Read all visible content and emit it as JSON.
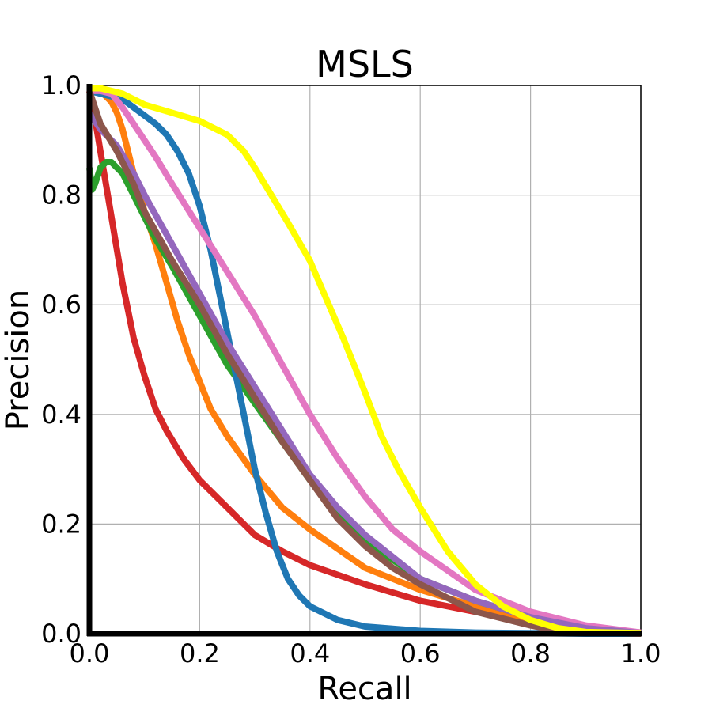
{
  "chart_data": {
    "type": "line",
    "title": "MSLS",
    "xlabel": "Recall",
    "ylabel": "Precision",
    "xlim": [
      0,
      1
    ],
    "ylim": [
      0,
      1
    ],
    "grid": true,
    "xticks": [
      {
        "value": 0.0,
        "label": "0.0"
      },
      {
        "value": 0.2,
        "label": "0.2"
      },
      {
        "value": 0.4,
        "label": "0.4"
      },
      {
        "value": 0.6,
        "label": "0.6"
      },
      {
        "value": 0.8,
        "label": "0.8"
      },
      {
        "value": 1.0,
        "label": "1.0"
      }
    ],
    "yticks": [
      {
        "value": 0.0,
        "label": "0.0"
      },
      {
        "value": 0.2,
        "label": "0.2"
      },
      {
        "value": 0.4,
        "label": "0.4"
      },
      {
        "value": 0.6,
        "label": "0.6"
      },
      {
        "value": 0.8,
        "label": "0.8"
      },
      {
        "value": 1.0,
        "label": "1.0"
      }
    ],
    "series": [
      {
        "name": "red",
        "color": "#d62728",
        "x": [
          0,
          0.01,
          0.02,
          0.03,
          0.04,
          0.05,
          0.06,
          0.07,
          0.08,
          0.1,
          0.12,
          0.14,
          0.17,
          0.2,
          0.25,
          0.3,
          0.35,
          0.4,
          0.5,
          0.6,
          0.7,
          0.8,
          0.9,
          1.0
        ],
        "y": [
          0.99,
          0.94,
          0.88,
          0.82,
          0.76,
          0.7,
          0.64,
          0.59,
          0.54,
          0.47,
          0.41,
          0.37,
          0.32,
          0.28,
          0.23,
          0.18,
          0.15,
          0.125,
          0.09,
          0.06,
          0.04,
          0.025,
          0.012,
          0.002
        ]
      },
      {
        "name": "orange",
        "color": "#ff7f0e",
        "x": [
          0,
          0.02,
          0.04,
          0.05,
          0.06,
          0.07,
          0.08,
          0.1,
          0.12,
          0.14,
          0.16,
          0.18,
          0.2,
          0.22,
          0.25,
          0.3,
          0.35,
          0.4,
          0.45,
          0.5,
          0.6,
          0.7,
          0.8,
          0.9,
          1.0
        ],
        "y": [
          0.99,
          0.99,
          0.97,
          0.95,
          0.92,
          0.88,
          0.84,
          0.77,
          0.71,
          0.64,
          0.57,
          0.51,
          0.46,
          0.41,
          0.36,
          0.29,
          0.23,
          0.19,
          0.155,
          0.12,
          0.08,
          0.05,
          0.025,
          0.01,
          0.001
        ]
      },
      {
        "name": "green",
        "color": "#2ca02c",
        "x": [
          0,
          0.005,
          0.01,
          0.02,
          0.03,
          0.04,
          0.05,
          0.06,
          0.08,
          0.1,
          0.12,
          0.15,
          0.2,
          0.25,
          0.3,
          0.35,
          0.4,
          0.45,
          0.5,
          0.6,
          0.7,
          0.8,
          0.9,
          1.0
        ],
        "y": [
          0.85,
          0.81,
          0.82,
          0.85,
          0.86,
          0.86,
          0.85,
          0.84,
          0.8,
          0.76,
          0.72,
          0.67,
          0.58,
          0.49,
          0.42,
          0.35,
          0.28,
          0.22,
          0.17,
          0.1,
          0.06,
          0.03,
          0.012,
          0.001
        ]
      },
      {
        "name": "blue",
        "color": "#1f77b4",
        "x": [
          0,
          0.02,
          0.04,
          0.06,
          0.08,
          0.1,
          0.12,
          0.14,
          0.16,
          0.18,
          0.2,
          0.22,
          0.24,
          0.26,
          0.28,
          0.3,
          0.32,
          0.34,
          0.36,
          0.38,
          0.4,
          0.45,
          0.5,
          0.6,
          0.7,
          0.8,
          0.9,
          1.0
        ],
        "y": [
          0.99,
          0.985,
          0.98,
          0.975,
          0.96,
          0.945,
          0.93,
          0.91,
          0.88,
          0.84,
          0.78,
          0.7,
          0.6,
          0.5,
          0.4,
          0.3,
          0.22,
          0.15,
          0.1,
          0.07,
          0.05,
          0.025,
          0.013,
          0.005,
          0.002,
          0.001,
          0.0,
          0.0
        ]
      },
      {
        "name": "pink",
        "color": "#e377c2",
        "x": [
          0,
          0.02,
          0.04,
          0.06,
          0.08,
          0.1,
          0.12,
          0.15,
          0.2,
          0.25,
          0.3,
          0.35,
          0.4,
          0.45,
          0.5,
          0.55,
          0.6,
          0.7,
          0.8,
          0.9,
          1.0
        ],
        "y": [
          0.99,
          0.99,
          0.985,
          0.96,
          0.93,
          0.9,
          0.87,
          0.82,
          0.74,
          0.66,
          0.58,
          0.49,
          0.4,
          0.32,
          0.25,
          0.19,
          0.15,
          0.08,
          0.04,
          0.015,
          0.002
        ]
      },
      {
        "name": "purple",
        "color": "#9467bd",
        "x": [
          0,
          0.02,
          0.05,
          0.08,
          0.1,
          0.15,
          0.2,
          0.25,
          0.3,
          0.35,
          0.4,
          0.45,
          0.5,
          0.55,
          0.6,
          0.7,
          0.8,
          0.9,
          1.0
        ],
        "y": [
          0.95,
          0.92,
          0.89,
          0.84,
          0.8,
          0.71,
          0.62,
          0.53,
          0.45,
          0.37,
          0.29,
          0.23,
          0.18,
          0.14,
          0.1,
          0.06,
          0.03,
          0.01,
          0.001
        ]
      },
      {
        "name": "brown",
        "color": "#8c564b",
        "x": [
          0,
          0.02,
          0.05,
          0.08,
          0.1,
          0.15,
          0.2,
          0.25,
          0.3,
          0.35,
          0.4,
          0.45,
          0.5,
          0.55,
          0.6,
          0.7,
          0.8,
          0.85,
          0.9,
          1.0
        ],
        "y": [
          0.99,
          0.93,
          0.88,
          0.82,
          0.77,
          0.68,
          0.6,
          0.51,
          0.43,
          0.35,
          0.28,
          0.21,
          0.16,
          0.12,
          0.09,
          0.04,
          0.015,
          0.005,
          0.002,
          0.0
        ]
      },
      {
        "name": "yellow",
        "color": "#ffff00",
        "x": [
          0,
          0.02,
          0.04,
          0.06,
          0.08,
          0.1,
          0.15,
          0.2,
          0.25,
          0.28,
          0.3,
          0.33,
          0.36,
          0.4,
          0.43,
          0.46,
          0.5,
          0.53,
          0.56,
          0.6,
          0.65,
          0.7,
          0.75,
          0.8,
          0.85,
          0.9,
          1.0
        ],
        "y": [
          0.995,
          0.995,
          0.99,
          0.985,
          0.975,
          0.965,
          0.95,
          0.935,
          0.91,
          0.88,
          0.85,
          0.8,
          0.75,
          0.68,
          0.61,
          0.54,
          0.44,
          0.36,
          0.3,
          0.23,
          0.15,
          0.09,
          0.05,
          0.025,
          0.01,
          0.003,
          0.001
        ]
      }
    ]
  }
}
